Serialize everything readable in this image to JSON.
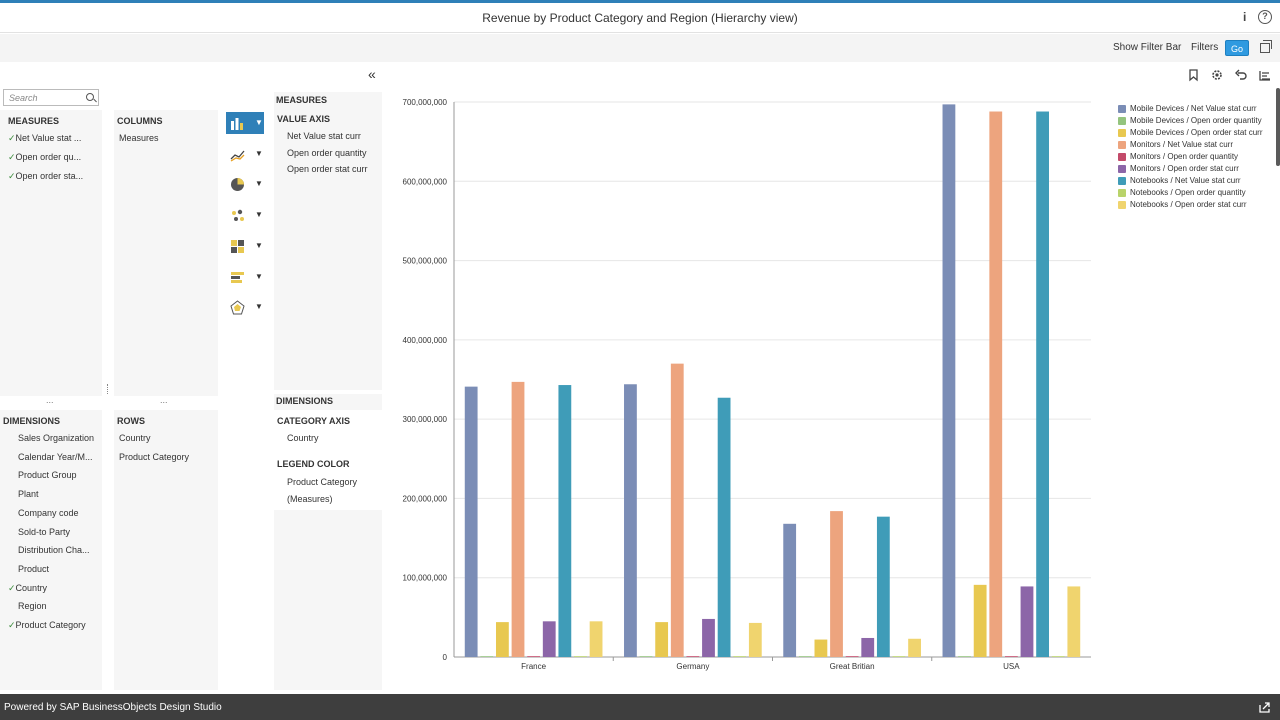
{
  "window": {
    "title": "Revenue by Product Category and Region (Hierarchy view)",
    "info_icon": "info-icon",
    "help_icon": "help-icon"
  },
  "filterbar": {
    "show_filter_bar": "Show Filter Bar",
    "filters": "Filters",
    "go": "Go"
  },
  "navigation": {
    "search_placeholder": "Search",
    "measures_header": "MEASURES",
    "measures": [
      {
        "label": "Net Value stat ...",
        "checked": true
      },
      {
        "label": "Open order qu...",
        "checked": true
      },
      {
        "label": "Open order sta...",
        "checked": true
      }
    ],
    "columns_header": "COLUMNS",
    "columns": [
      "Measures"
    ],
    "dimensions_header": "DIMENSIONS",
    "dimensions": [
      {
        "label": "Sales Organization",
        "checked": false
      },
      {
        "label": "Calendar Year/M...",
        "checked": false
      },
      {
        "label": "Product Group",
        "checked": false
      },
      {
        "label": "Plant",
        "checked": false
      },
      {
        "label": "Company code",
        "checked": false
      },
      {
        "label": "Sold-to Party",
        "checked": false
      },
      {
        "label": "Distribution Cha...",
        "checked": false
      },
      {
        "label": "Product",
        "checked": false
      },
      {
        "label": "Country",
        "checked": true
      },
      {
        "label": "Region",
        "checked": false
      },
      {
        "label": "Product Category",
        "checked": true
      }
    ],
    "rows_header": "ROWS",
    "rows": [
      "Country",
      "Product Category"
    ],
    "splitter_dots": "..."
  },
  "chart_types": [
    "bar-chart-icon",
    "line-chart-icon",
    "pie-chart-icon",
    "scatter-chart-icon",
    "heatmap-chart-icon",
    "stacked-chart-icon",
    "radar-chart-icon"
  ],
  "feeding": {
    "measures_header": "MEASURES",
    "value_axis_header": "VALUE AXIS",
    "value_axis": [
      "Net Value stat curr",
      "Open order quantity",
      "Open order stat curr"
    ],
    "dimensions_header": "DIMENSIONS",
    "category_axis_header": "CATEGORY AXIS",
    "category_axis": [
      "Country"
    ],
    "legend_color_header": "LEGEND COLOR",
    "legend_color": [
      "Product Category",
      "(Measures)"
    ]
  },
  "chart_tools": [
    "bookmark-icon",
    "settings-icon",
    "undo-icon",
    "list-icon"
  ],
  "chart_data": {
    "type": "bar",
    "categories": [
      "France",
      "Germany",
      "Great Britian",
      "USA"
    ],
    "ylim": [
      0,
      700000000
    ],
    "yticks": [
      "0",
      "100,000,000",
      "200,000,000",
      "300,000,000",
      "400,000,000",
      "500,000,000",
      "600,000,000",
      "700,000,000"
    ],
    "legend_position": "top-right",
    "series": [
      {
        "name": "Mobile Devices / Net Value stat curr",
        "color": "#7b8db6",
        "values": [
          341000000,
          344000000,
          168000000,
          697000000
        ]
      },
      {
        "name": "Mobile Devices / Open order quantity",
        "color": "#94c47e",
        "values": [
          0,
          0,
          0,
          0
        ]
      },
      {
        "name": "Mobile Devices / Open order stat curr",
        "color": "#e8c850",
        "values": [
          44000000,
          44000000,
          22000000,
          91000000
        ]
      },
      {
        "name": "Monitors / Net Value stat curr",
        "color": "#eda47e",
        "values": [
          347000000,
          370000000,
          184000000,
          688000000
        ]
      },
      {
        "name": "Monitors / Open order quantity",
        "color": "#c34a6a",
        "values": [
          0,
          0,
          0,
          0
        ]
      },
      {
        "name": "Monitors / Open order stat curr",
        "color": "#8c66a8",
        "values": [
          45000000,
          48000000,
          24000000,
          89000000
        ]
      },
      {
        "name": "Notebooks / Net Value stat curr",
        "color": "#3f9cb8",
        "values": [
          343000000,
          327000000,
          177000000,
          688000000
        ]
      },
      {
        "name": "Notebooks / Open order quantity",
        "color": "#b9d36a",
        "values": [
          0,
          0,
          0,
          0
        ]
      },
      {
        "name": "Notebooks / Open order stat curr",
        "color": "#f0d46e",
        "values": [
          45000000,
          43000000,
          23000000,
          89000000
        ]
      }
    ]
  },
  "footer": {
    "text": "Powered by SAP BusinessObjects Design Studio"
  }
}
